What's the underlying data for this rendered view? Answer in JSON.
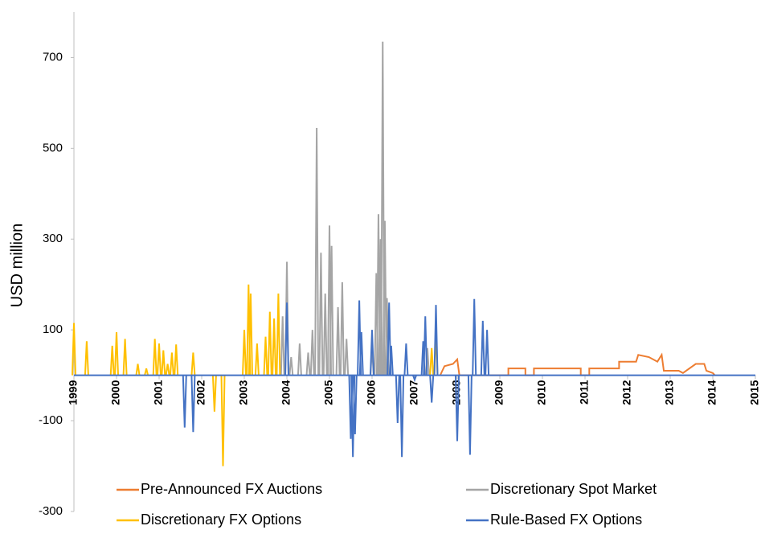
{
  "chart_data": {
    "type": "line",
    "ylabel": "USD million",
    "xlim": [
      1999,
      2015
    ],
    "xticks": [
      1999,
      2000,
      2001,
      2002,
      2003,
      2004,
      2005,
      2006,
      2007,
      2008,
      2009,
      2010,
      2011,
      2012,
      2013,
      2014,
      2015
    ],
    "ylim": [
      -300,
      800
    ],
    "yticks": [
      -300,
      -100,
      100,
      300,
      500,
      700
    ],
    "legend": "bottom",
    "series": [
      {
        "name": "Pre-Announced FX Auctions",
        "color": "#ed7d31",
        "style": "line",
        "x": [
          2007.6,
          2007.7,
          2007.9,
          2008.0,
          2008.05,
          2009.2,
          2009.2,
          2009.6,
          2009.6,
          2009.8,
          2009.8,
          2010.9,
          2010.9,
          2011.1,
          2011.1,
          2011.8,
          2011.8,
          2012.2,
          2012.25,
          2012.5,
          2012.7,
          2012.8,
          2012.85,
          2013.2,
          2013.3,
          2013.6,
          2013.8,
          2013.85,
          2014.0,
          2014.05
        ],
        "values": [
          0,
          20,
          25,
          35,
          0,
          0,
          15,
          15,
          0,
          0,
          15,
          15,
          0,
          0,
          15,
          15,
          30,
          30,
          45,
          40,
          30,
          45,
          10,
          10,
          5,
          25,
          25,
          10,
          5,
          0
        ]
      },
      {
        "name": "Discretionary Spot Market",
        "color": "#a5a5a5",
        "style": "spike",
        "x": [
          2003.9,
          2004.0,
          2004.1,
          2004.3,
          2004.5,
          2004.6,
          2004.7,
          2004.8,
          2004.9,
          2005.0,
          2005.05,
          2005.2,
          2005.3,
          2005.4,
          2006.0,
          2006.1,
          2006.15,
          2006.2,
          2006.25,
          2006.3,
          2006.35,
          2007.3
        ],
        "values": [
          130,
          250,
          40,
          70,
          50,
          100,
          545,
          270,
          180,
          330,
          285,
          150,
          205,
          80,
          60,
          225,
          355,
          300,
          735,
          340,
          170,
          60
        ]
      },
      {
        "name": "Discretionary FX Options",
        "color": "#ffc000",
        "style": "spike",
        "x": [
          1999.0,
          1999.3,
          1999.9,
          2000.0,
          2000.2,
          2000.5,
          2000.7,
          2000.9,
          2001.0,
          2001.1,
          2001.2,
          2001.3,
          2001.4,
          2001.8,
          2002.3,
          2002.5,
          2003.0,
          2003.1,
          2003.15,
          2003.3,
          2003.5,
          2003.6,
          2003.7,
          2003.8,
          2007.4,
          2007.5
        ],
        "values": [
          115,
          75,
          65,
          95,
          80,
          25,
          15,
          80,
          70,
          55,
          25,
          50,
          68,
          50,
          -80,
          -200,
          100,
          200,
          180,
          70,
          85,
          140,
          125,
          180,
          60,
          95
        ]
      },
      {
        "name": "Rule-Based FX Options",
        "color": "#4472c4",
        "style": "spike",
        "x": [
          2001.6,
          2001.8,
          2004.0,
          2005.5,
          2005.55,
          2005.6,
          2005.7,
          2005.75,
          2006.0,
          2006.4,
          2006.45,
          2006.6,
          2006.7,
          2006.8,
          2007.0,
          2007.2,
          2007.25,
          2007.4,
          2007.5,
          2008.0,
          2008.3,
          2008.4,
          2008.6,
          2008.7
        ],
        "values": [
          -115,
          -125,
          160,
          -140,
          -180,
          -130,
          165,
          95,
          100,
          160,
          65,
          -105,
          -180,
          70,
          -10,
          75,
          130,
          -60,
          155,
          -145,
          -175,
          168,
          120,
          100
        ]
      }
    ]
  }
}
